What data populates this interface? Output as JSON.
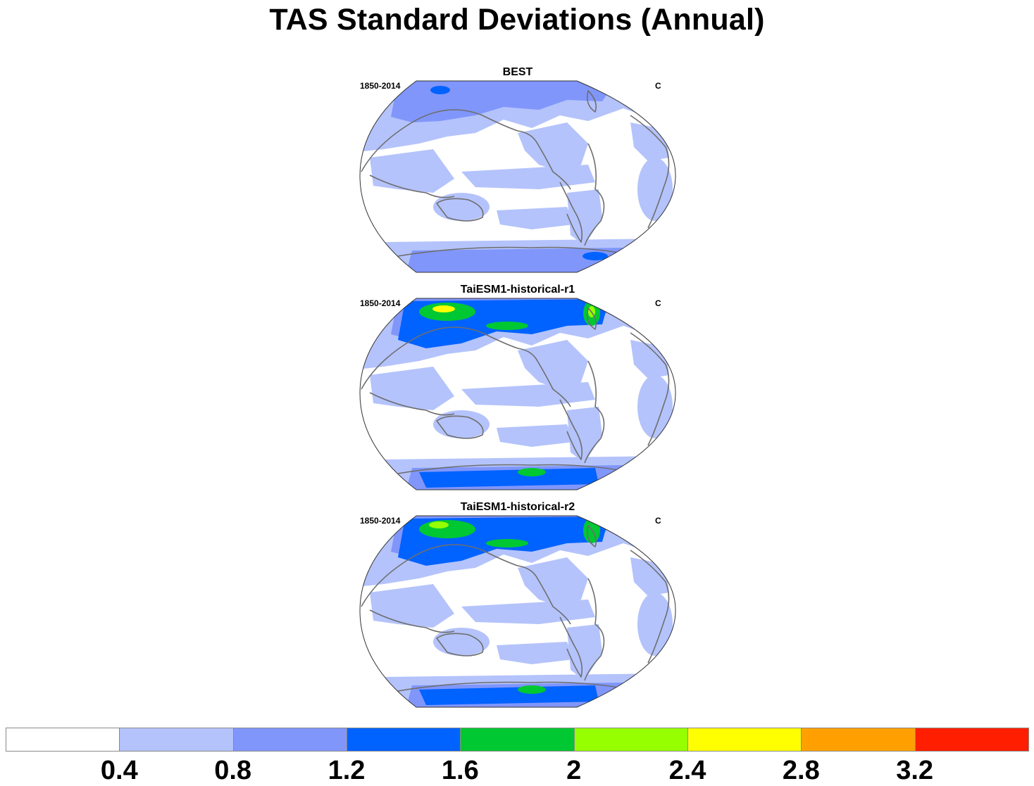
{
  "title": "TAS Standard Deviations (Annual)",
  "panels": [
    {
      "title": "BEST",
      "left": "1850-2014",
      "right": "C",
      "variant": "obs"
    },
    {
      "title": "TaiESM1-historical-r1",
      "left": "1850-2014",
      "right": "C",
      "variant": "model1"
    },
    {
      "title": "TaiESM1-historical-r2",
      "left": "1850-2014",
      "right": "C",
      "variant": "model2"
    }
  ],
  "colorbar": {
    "colors": [
      "#ffffff",
      "#b4c3fb",
      "#8096fb",
      "#0062ff",
      "#00c832",
      "#96ff00",
      "#ffff00",
      "#ffa000",
      "#ff1e00"
    ],
    "labels": [
      "0.4",
      "0.8",
      "1.2",
      "1.6",
      "2",
      "2.4",
      "2.8",
      "3.2"
    ]
  }
}
